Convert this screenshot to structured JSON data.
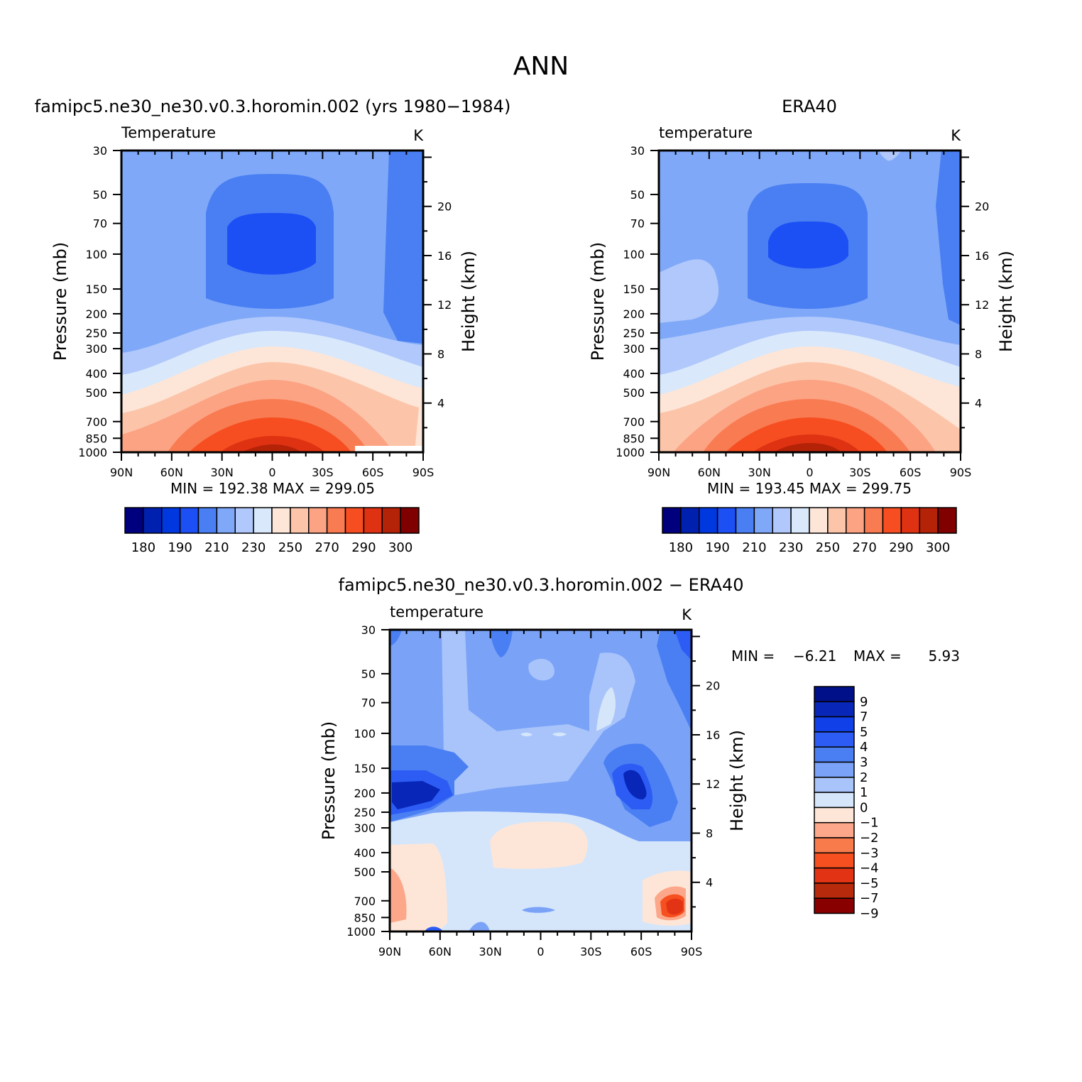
{
  "figure_title": "ANN",
  "colors": {
    "abs_levels": [
      "#00007f",
      "#0020b0",
      "#0038e0",
      "#1c50f4",
      "#4a7ff3",
      "#7fa8f8",
      "#b0c8fb",
      "#d9e8fb",
      "#fde6d8",
      "#fcc5aa",
      "#fca384",
      "#f97b52",
      "#f64e20",
      "#de3212",
      "#b42208",
      "#800000"
    ],
    "diff_levels": [
      "#001088",
      "#0826b8",
      "#1040e8",
      "#2c5cf4",
      "#4a7ff3",
      "#7aa2f7",
      "#a8c4fa",
      "#d5e6fb",
      "#fde6d8",
      "#fca78a",
      "#f87b4c",
      "#f65020",
      "#e23414",
      "#b82a0c",
      "#880000"
    ]
  },
  "chart_data": [
    {
      "type": "contour",
      "panel": "model",
      "title": "famipc5.ne30_ne30.v0.3.horomin.002 (yrs 1980−1984)",
      "left_label": "Temperature",
      "right_label": "K",
      "ylabel": "Pressure (mb)",
      "y2label": "Height (km)",
      "x_ticks": [
        "90N",
        "60N",
        "30N",
        "0",
        "30S",
        "60S",
        "90S"
      ],
      "y_ticks": [
        "30",
        "50",
        "70",
        "100",
        "150",
        "200",
        "250",
        "300",
        "400",
        "500",
        "700",
        "850",
        "1000"
      ],
      "y2_ticks": [
        "20",
        "16",
        "12",
        "8",
        "4"
      ],
      "ylim": [
        1000,
        30
      ],
      "stats": "MIN = 192.38   MAX = 299.05",
      "min": 192.38,
      "max": 299.05,
      "colorbar_labels": [
        "180",
        "190",
        "210",
        "230",
        "250",
        "270",
        "290",
        "300"
      ]
    },
    {
      "type": "contour",
      "panel": "obs",
      "title": "ERA40",
      "left_label": "temperature",
      "right_label": "K",
      "ylabel": "Pressure (mb)",
      "y2label": "Height (km)",
      "x_ticks": [
        "90N",
        "60N",
        "30N",
        "0",
        "30S",
        "60S",
        "90S"
      ],
      "y_ticks": [
        "30",
        "50",
        "70",
        "100",
        "150",
        "200",
        "250",
        "300",
        "400",
        "500",
        "700",
        "850",
        "1000"
      ],
      "y2_ticks": [
        "20",
        "16",
        "12",
        "8",
        "4"
      ],
      "ylim": [
        1000,
        30
      ],
      "stats": "MIN = 193.45   MAX = 299.75",
      "min": 193.45,
      "max": 299.75,
      "colorbar_labels": [
        "180",
        "190",
        "210",
        "230",
        "250",
        "270",
        "290",
        "300"
      ]
    },
    {
      "type": "contour",
      "panel": "difference",
      "title": "famipc5.ne30_ne30.v0.3.horomin.002 − ERA40",
      "left_label": "temperature",
      "right_label": "K",
      "ylabel": "Pressure (mb)",
      "y2label": "Height (km)",
      "x_ticks": [
        "90N",
        "60N",
        "30N",
        "0",
        "30S",
        "60S",
        "90S"
      ],
      "y_ticks": [
        "30",
        "50",
        "70",
        "100",
        "150",
        "200",
        "250",
        "300",
        "400",
        "500",
        "700",
        "850",
        "1000"
      ],
      "y2_ticks": [
        "20",
        "16",
        "12",
        "8",
        "4"
      ],
      "ylim": [
        1000,
        30
      ],
      "stats_min_label": "MIN =",
      "stats_min": "−6.21",
      "stats_max_label": "MAX =",
      "stats_max": "5.93",
      "min": -6.21,
      "max": 5.93,
      "colorbar_labels": [
        "9",
        "7",
        "5",
        "4",
        "3",
        "2",
        "1",
        "0",
        "−1",
        "−2",
        "−3",
        "−4",
        "−5",
        "−7",
        "−9"
      ]
    }
  ]
}
